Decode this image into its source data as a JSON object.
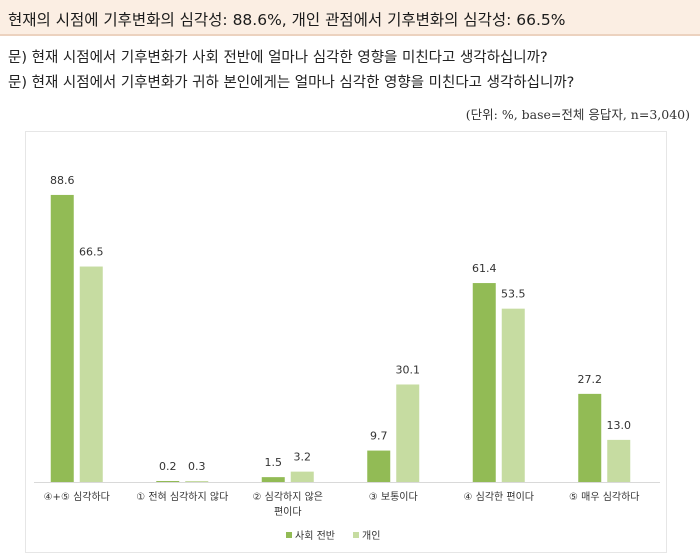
{
  "header": {
    "title": "현재의 시점에 기후변화의 심각성: 88.6%, 개인 관점에서 기후변화의 심각성: 66.5%"
  },
  "questions": [
    "문) 현재 시점에서 기후변화가 사회 전반에 얼마나 심각한 영향을 미친다고 생각하십니까?",
    "문) 현재 시점에서 기후변화가 귀하 본인에게는 얼마나 심각한 영향을 미친다고 생각하십니까?"
  ],
  "unit_note": "(단위: %, base=전체 응답자, n=3,040)",
  "chart_data": {
    "type": "bar",
    "categories": [
      [
        "④+⑤ 심각하다"
      ],
      [
        "① 전혀 심각하지 않다"
      ],
      [
        "② 심각하지 않은",
        "편이다"
      ],
      [
        "③ 보통이다"
      ],
      [
        "④ 심각한 편이다"
      ],
      [
        "⑤ 매우 심각하다"
      ]
    ],
    "series": [
      {
        "name": "사회 전반",
        "color": "#92bb55",
        "values": [
          88.6,
          0.2,
          1.5,
          9.7,
          61.4,
          27.2
        ]
      },
      {
        "name": "개인",
        "color": "#c6dca1",
        "values": [
          66.5,
          0.3,
          3.2,
          30.1,
          53.5,
          13.0
        ]
      }
    ],
    "ylim": [
      0,
      100
    ],
    "legend": "bottom-center",
    "grid": false
  }
}
